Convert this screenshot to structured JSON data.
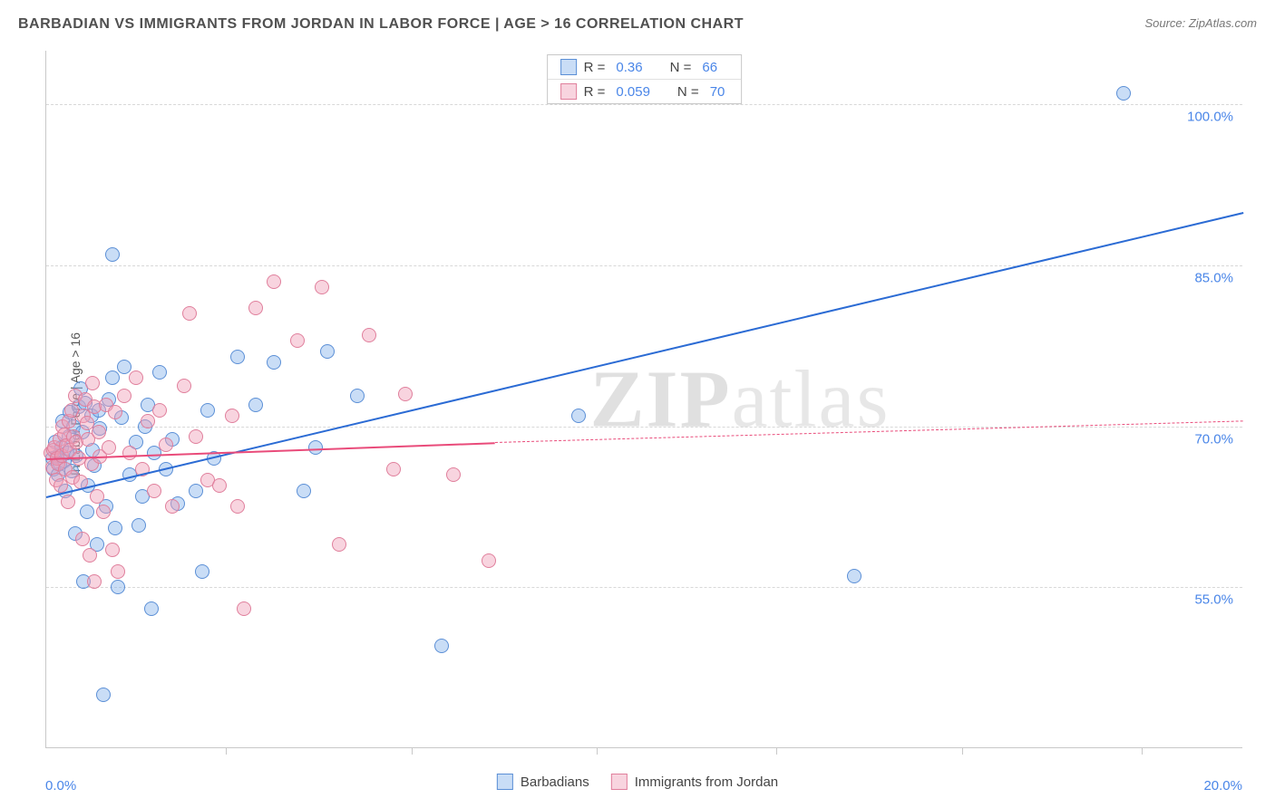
{
  "title": "BARBADIAN VS IMMIGRANTS FROM JORDAN IN LABOR FORCE | AGE > 16 CORRELATION CHART",
  "source_label": "Source: ZipAtlas.com",
  "y_axis_label": "In Labor Force | Age > 16",
  "watermark_bold": "ZIP",
  "watermark_rest": "atlas",
  "chart": {
    "type": "scatter",
    "xlim": [
      0,
      20
    ],
    "ylim": [
      40,
      105
    ],
    "x_tick_labels": {
      "min": "0.0%",
      "max": "20.0%"
    },
    "x_minor_ticks": [
      3.0,
      6.1,
      9.2,
      12.2,
      15.3,
      18.3
    ],
    "y_ticks": [
      55.0,
      70.0,
      85.0,
      100.0
    ],
    "y_tick_labels": [
      "55.0%",
      "70.0%",
      "85.0%",
      "100.0%"
    ],
    "grid_color": "#d8d8d8",
    "background_color": "#ffffff",
    "axis_color": "#c8c8c8",
    "tick_label_color": "#4a86e8",
    "tick_label_fontsize": 15,
    "axis_label_fontsize": 14,
    "marker_radius": 8,
    "marker_stroke_width": 1.5,
    "series": [
      {
        "name": "Barbadians",
        "fill_color": "rgba(135,180,235,0.45)",
        "stroke_color": "#5b8fd6",
        "trend_color": "#2b6bd4",
        "trend_width": 2,
        "R": 0.36,
        "N": 66,
        "trend": {
          "x1": 0,
          "y1": 63.5,
          "x2": 20,
          "y2": 90.0,
          "dash_after_x": 20
        },
        "points": [
          [
            0.1,
            67.0
          ],
          [
            0.12,
            66.0
          ],
          [
            0.15,
            68.5
          ],
          [
            0.18,
            67.2
          ],
          [
            0.2,
            65.5
          ],
          [
            0.22,
            66.5
          ],
          [
            0.25,
            68.0
          ],
          [
            0.28,
            70.5
          ],
          [
            0.3,
            66.8
          ],
          [
            0.32,
            64.0
          ],
          [
            0.35,
            67.5
          ],
          [
            0.38,
            69.0
          ],
          [
            0.4,
            71.3
          ],
          [
            0.42,
            65.8
          ],
          [
            0.45,
            70.0
          ],
          [
            0.48,
            60.0
          ],
          [
            0.5,
            67.3
          ],
          [
            0.55,
            71.8
          ],
          [
            0.58,
            73.5
          ],
          [
            0.6,
            69.5
          ],
          [
            0.62,
            55.5
          ],
          [
            0.65,
            72.2
          ],
          [
            0.68,
            62.0
          ],
          [
            0.7,
            64.5
          ],
          [
            0.75,
            71.0
          ],
          [
            0.78,
            67.8
          ],
          [
            0.8,
            66.3
          ],
          [
            0.85,
            59.0
          ],
          [
            0.88,
            71.5
          ],
          [
            0.9,
            69.8
          ],
          [
            0.95,
            45.0
          ],
          [
            1.0,
            62.5
          ],
          [
            1.05,
            72.5
          ],
          [
            1.1,
            74.5
          ],
          [
            1.15,
            60.5
          ],
          [
            1.2,
            55.0
          ],
          [
            1.25,
            70.8
          ],
          [
            1.3,
            75.5
          ],
          [
            1.4,
            65.5
          ],
          [
            1.5,
            68.5
          ],
          [
            1.55,
            60.8
          ],
          [
            1.6,
            63.5
          ],
          [
            1.65,
            70.0
          ],
          [
            1.7,
            72.0
          ],
          [
            1.75,
            53.0
          ],
          [
            1.8,
            67.5
          ],
          [
            1.9,
            75.0
          ],
          [
            2.0,
            66.0
          ],
          [
            2.1,
            68.8
          ],
          [
            2.2,
            62.8
          ],
          [
            2.5,
            64.0
          ],
          [
            2.6,
            56.5
          ],
          [
            2.7,
            71.5
          ],
          [
            2.8,
            67.0
          ],
          [
            3.2,
            76.5
          ],
          [
            3.5,
            72.0
          ],
          [
            3.8,
            76.0
          ],
          [
            4.3,
            64.0
          ],
          [
            4.5,
            68.0
          ],
          [
            4.7,
            77.0
          ],
          [
            5.2,
            72.8
          ],
          [
            6.6,
            49.5
          ],
          [
            8.9,
            71.0
          ],
          [
            13.5,
            56.0
          ],
          [
            18.0,
            101.0
          ],
          [
            1.1,
            86.0
          ]
        ]
      },
      {
        "name": "Immigrants from Jordan",
        "fill_color": "rgba(240,160,185,0.45)",
        "stroke_color": "#e07f9c",
        "trend_color": "#e94b7a",
        "trend_width": 2,
        "R": 0.059,
        "N": 70,
        "trend": {
          "x1": 0,
          "y1": 67.0,
          "x2": 7.5,
          "y2": 68.5,
          "dash_after_x": 7.5,
          "dash_x2": 20,
          "dash_y2": 70.5
        },
        "points": [
          [
            0.08,
            67.5
          ],
          [
            0.1,
            66.2
          ],
          [
            0.12,
            67.8
          ],
          [
            0.14,
            68.0
          ],
          [
            0.16,
            65.0
          ],
          [
            0.18,
            67.0
          ],
          [
            0.2,
            66.5
          ],
          [
            0.22,
            68.8
          ],
          [
            0.24,
            64.5
          ],
          [
            0.26,
            67.3
          ],
          [
            0.28,
            70.0
          ],
          [
            0.3,
            69.2
          ],
          [
            0.32,
            66.0
          ],
          [
            0.34,
            68.2
          ],
          [
            0.36,
            63.0
          ],
          [
            0.38,
            70.5
          ],
          [
            0.4,
            67.8
          ],
          [
            0.42,
            71.5
          ],
          [
            0.44,
            65.2
          ],
          [
            0.46,
            69.0
          ],
          [
            0.48,
            72.8
          ],
          [
            0.5,
            68.5
          ],
          [
            0.55,
            67.0
          ],
          [
            0.58,
            64.8
          ],
          [
            0.6,
            59.5
          ],
          [
            0.62,
            71.0
          ],
          [
            0.65,
            72.5
          ],
          [
            0.68,
            70.3
          ],
          [
            0.7,
            68.8
          ],
          [
            0.72,
            58.0
          ],
          [
            0.75,
            66.5
          ],
          [
            0.78,
            74.0
          ],
          [
            0.8,
            71.8
          ],
          [
            0.85,
            63.5
          ],
          [
            0.88,
            69.5
          ],
          [
            0.9,
            67.2
          ],
          [
            0.95,
            62.0
          ],
          [
            1.0,
            72.0
          ],
          [
            1.05,
            68.0
          ],
          [
            1.1,
            58.5
          ],
          [
            1.15,
            71.3
          ],
          [
            1.2,
            56.5
          ],
          [
            1.3,
            72.8
          ],
          [
            1.4,
            67.5
          ],
          [
            1.5,
            74.5
          ],
          [
            1.6,
            66.0
          ],
          [
            1.7,
            70.5
          ],
          [
            1.8,
            64.0
          ],
          [
            1.9,
            71.5
          ],
          [
            2.0,
            68.3
          ],
          [
            2.1,
            62.5
          ],
          [
            2.3,
            73.8
          ],
          [
            2.5,
            69.0
          ],
          [
            2.7,
            65.0
          ],
          [
            2.9,
            64.5
          ],
          [
            3.1,
            71.0
          ],
          [
            3.3,
            53.0
          ],
          [
            3.5,
            81.0
          ],
          [
            3.8,
            83.5
          ],
          [
            3.2,
            62.5
          ],
          [
            4.2,
            78.0
          ],
          [
            4.6,
            83.0
          ],
          [
            4.9,
            59.0
          ],
          [
            5.4,
            78.5
          ],
          [
            5.8,
            66.0
          ],
          [
            6.0,
            73.0
          ],
          [
            6.8,
            65.5
          ],
          [
            7.4,
            57.5
          ],
          [
            0.8,
            55.5
          ],
          [
            2.4,
            80.5
          ]
        ]
      }
    ]
  },
  "legend_top": {
    "R_label": "R =",
    "N_label": "N ="
  },
  "legend_bottom": {
    "series1": "Barbadians",
    "series2": "Immigrants from Jordan"
  }
}
